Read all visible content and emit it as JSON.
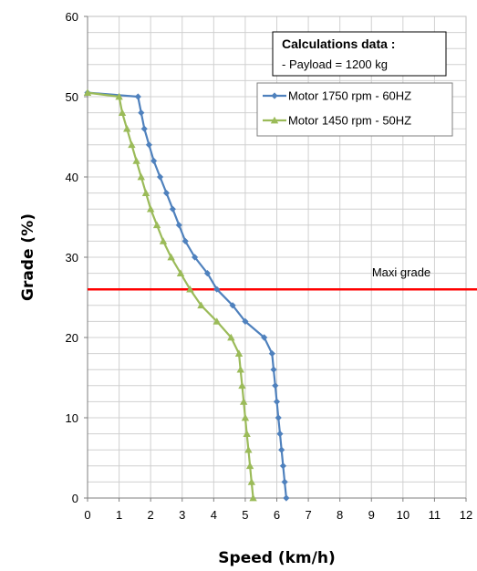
{
  "chart_data": {
    "type": "line",
    "xlabel": "Speed (km/h)",
    "ylabel": "Grade (%)",
    "xlim": [
      0,
      12
    ],
    "ylim": [
      0,
      60
    ],
    "xticks": [
      0,
      1,
      2,
      3,
      4,
      5,
      6,
      7,
      8,
      9,
      10,
      11,
      12
    ],
    "yticks": [
      0,
      10,
      20,
      30,
      40,
      50,
      60
    ],
    "grid": true,
    "legend_position": "top-right",
    "series": [
      {
        "name": "Motor 1750 rpm - 60HZ",
        "color": "#4f81bd",
        "marker": "diamond",
        "points": [
          [
            0,
            50.5
          ],
          [
            1.6,
            50
          ],
          [
            1.7,
            48
          ],
          [
            1.8,
            46
          ],
          [
            1.95,
            44
          ],
          [
            2.1,
            42
          ],
          [
            2.3,
            40
          ],
          [
            2.5,
            38
          ],
          [
            2.7,
            36
          ],
          [
            2.9,
            34
          ],
          [
            3.1,
            32
          ],
          [
            3.4,
            30
          ],
          [
            3.8,
            28
          ],
          [
            4.1,
            26
          ],
          [
            4.6,
            24
          ],
          [
            5.0,
            22
          ],
          [
            5.6,
            20
          ],
          [
            5.85,
            18
          ],
          [
            5.9,
            16
          ],
          [
            5.95,
            14
          ],
          [
            6.0,
            12
          ],
          [
            6.05,
            10
          ],
          [
            6.1,
            8
          ],
          [
            6.15,
            6
          ],
          [
            6.2,
            4
          ],
          [
            6.25,
            2
          ],
          [
            6.3,
            0
          ]
        ]
      },
      {
        "name": "Motor 1450 rpm - 50HZ",
        "color": "#9bbb59",
        "marker": "triangle",
        "points": [
          [
            0,
            50.5
          ],
          [
            1.0,
            50
          ],
          [
            1.1,
            48
          ],
          [
            1.25,
            46
          ],
          [
            1.4,
            44
          ],
          [
            1.55,
            42
          ],
          [
            1.7,
            40
          ],
          [
            1.85,
            38
          ],
          [
            2.0,
            36
          ],
          [
            2.2,
            34
          ],
          [
            2.4,
            32
          ],
          [
            2.65,
            30
          ],
          [
            2.95,
            28
          ],
          [
            3.25,
            26
          ],
          [
            3.6,
            24
          ],
          [
            4.1,
            22
          ],
          [
            4.55,
            20
          ],
          [
            4.8,
            18
          ],
          [
            4.85,
            16
          ],
          [
            4.9,
            14
          ],
          [
            4.95,
            12
          ],
          [
            5.0,
            10
          ],
          [
            5.05,
            8
          ],
          [
            5.1,
            6
          ],
          [
            5.15,
            4
          ],
          [
            5.2,
            2
          ],
          [
            5.25,
            0
          ]
        ]
      }
    ],
    "reference_line": {
      "label": "Maxi grade",
      "y": 26,
      "color": "#ff0000"
    },
    "annotation": {
      "title": "Calculations data :",
      "lines": [
        "- Payload = 1200 kg"
      ]
    }
  }
}
